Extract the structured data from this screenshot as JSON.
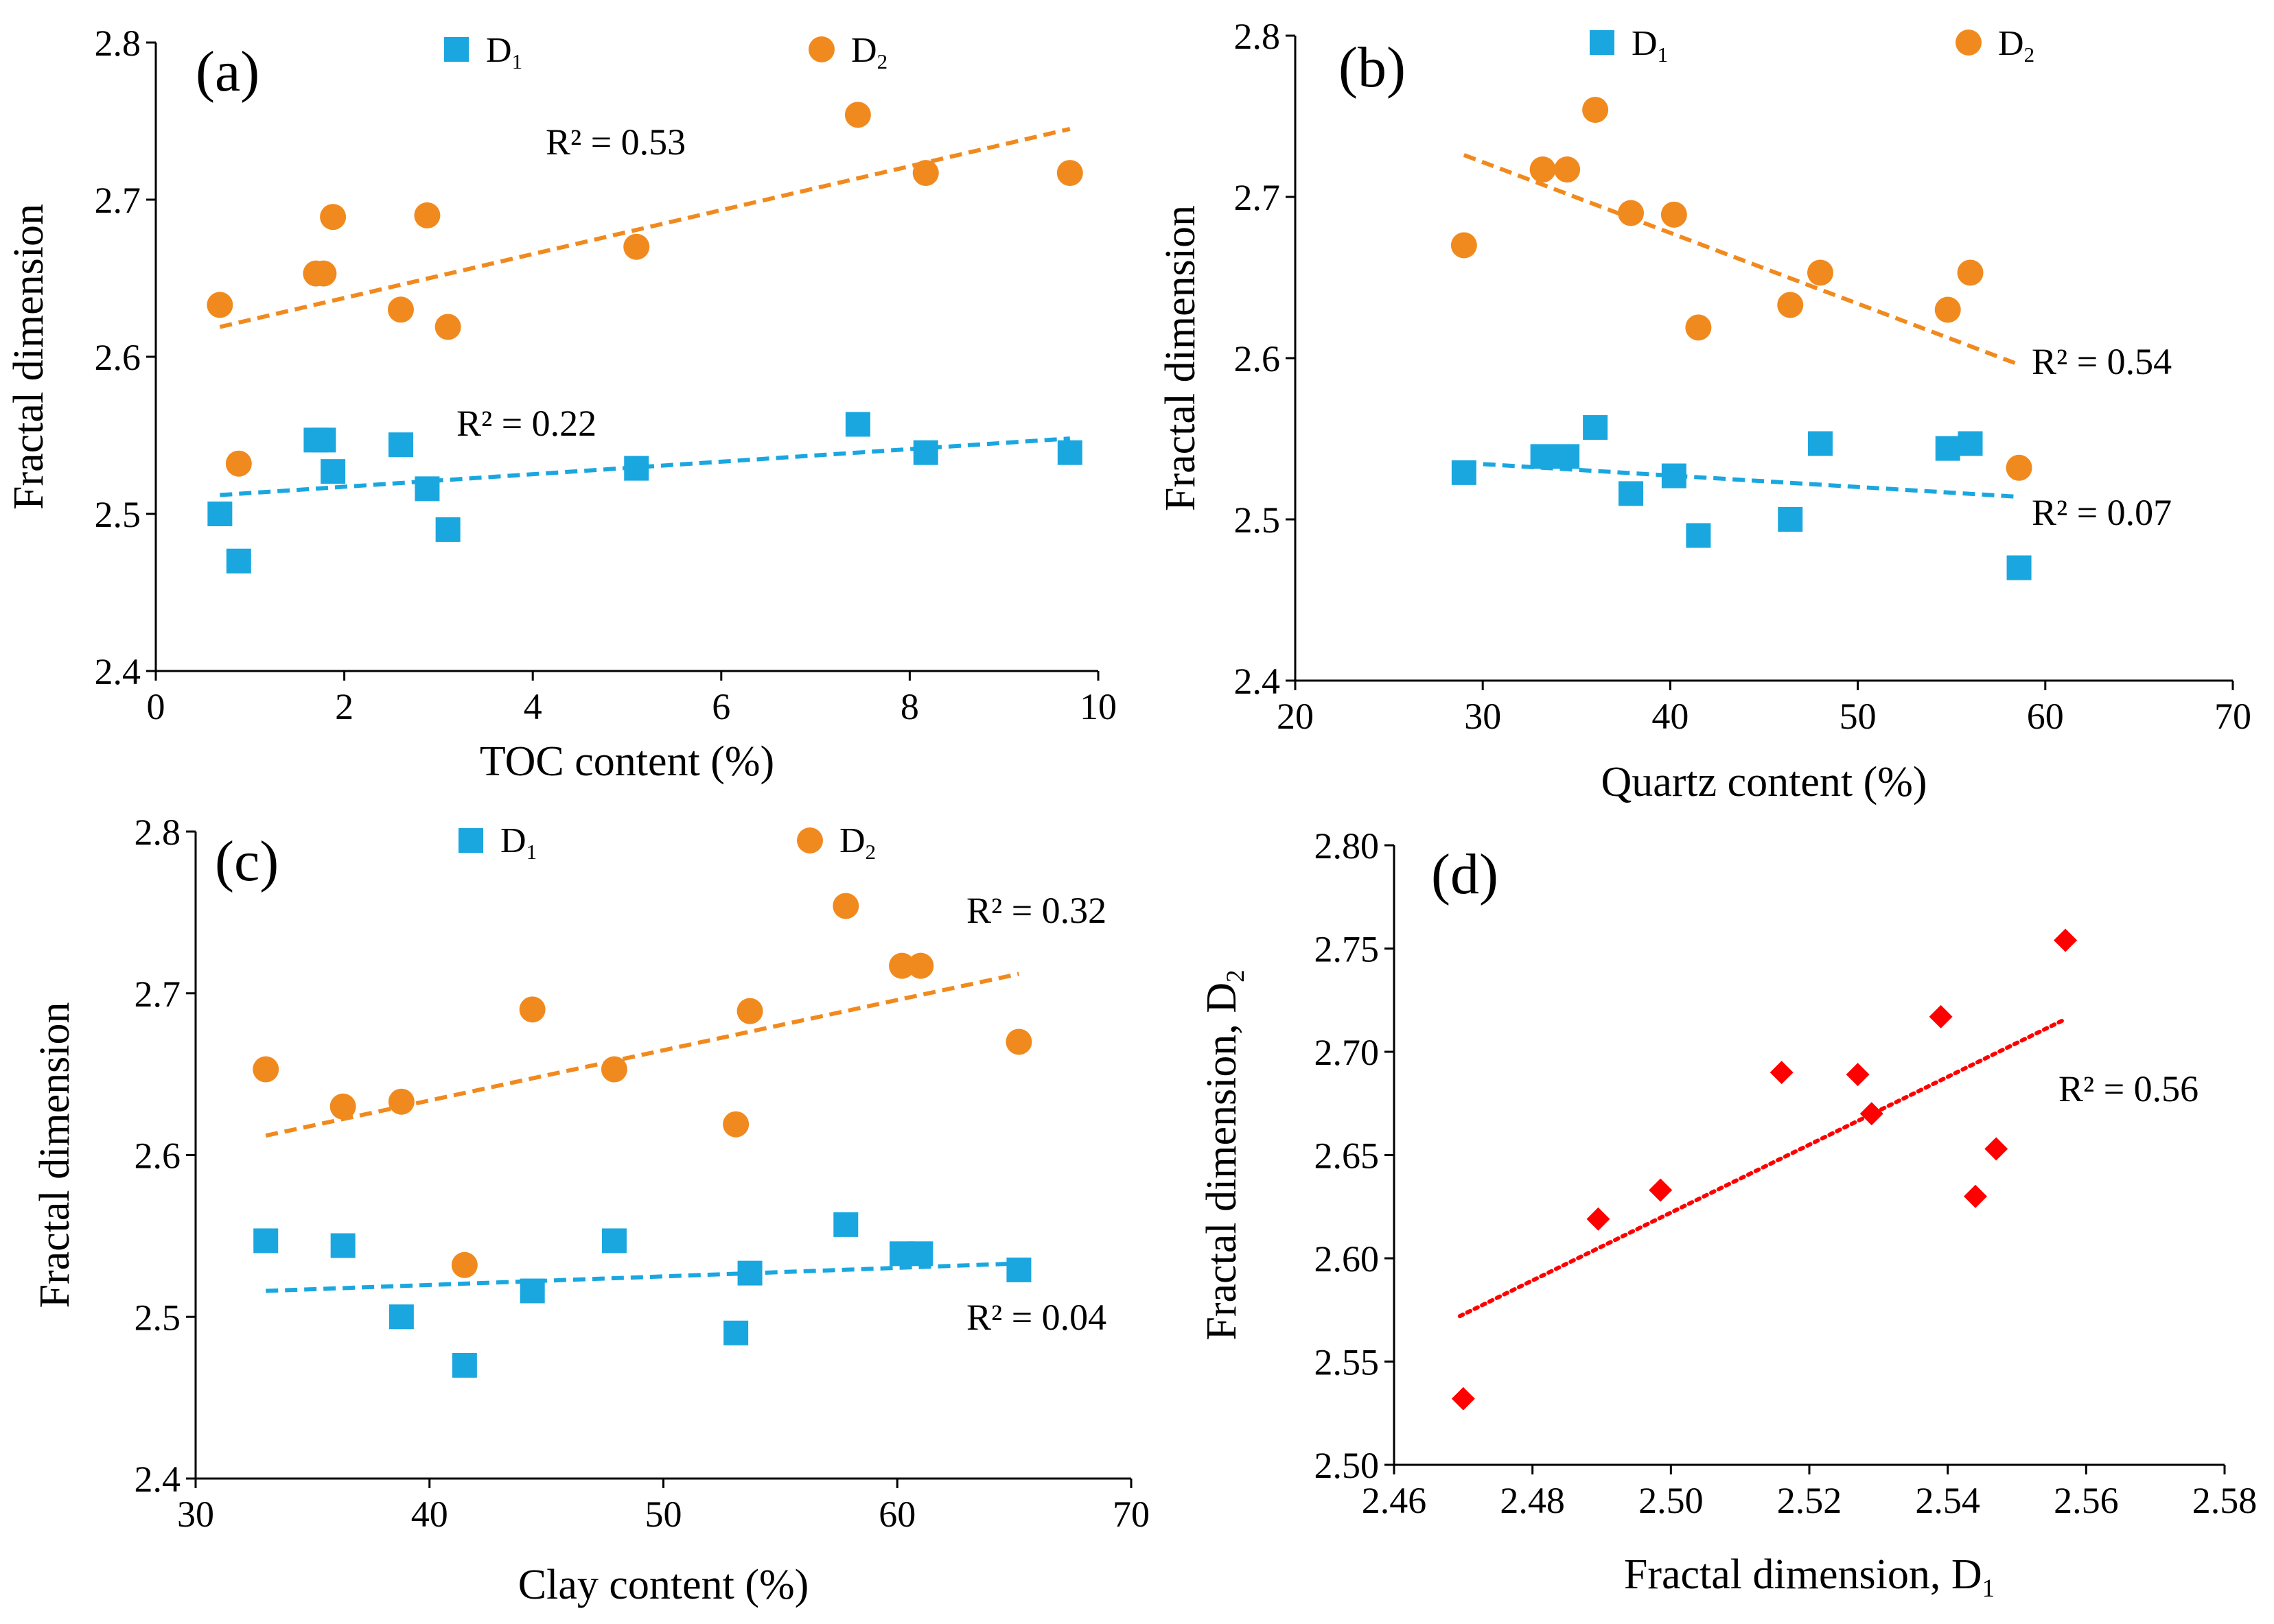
{
  "chart_data": [
    {
      "type": "scatter",
      "panel_label": "(a)",
      "xlabel": "TOC content (%)",
      "ylabel": "Fractal dimension",
      "xlim": [
        0,
        10
      ],
      "ylim": [
        2.4,
        2.8
      ],
      "xticks": [
        0,
        2,
        4,
        6,
        8,
        10
      ],
      "yticks": [
        2.4,
        2.5,
        2.6,
        2.7,
        2.8
      ],
      "xtick_labels": [
        "0",
        "2",
        "4",
        "6",
        "8",
        "10"
      ],
      "ytick_labels": [
        "2.4",
        "2.5",
        "2.6",
        "2.7",
        "2.8"
      ],
      "legend": [
        {
          "label": "D",
          "sub": "1",
          "marker": "square",
          "color": "#1aa7e0"
        },
        {
          "label": "D",
          "sub": "2",
          "marker": "circle",
          "color": "#f18a1e"
        }
      ],
      "series": [
        {
          "name": "D1",
          "marker": "square",
          "color": "#1aa7e0",
          "x": [
            0.68,
            0.88,
            1.7,
            1.78,
            1.88,
            2.6,
            2.88,
            3.1,
            5.1,
            7.45,
            8.17,
            9.7
          ],
          "y": [
            2.5,
            2.47,
            2.547,
            2.547,
            2.527,
            2.544,
            2.516,
            2.49,
            2.529,
            2.557,
            2.539,
            2.539
          ],
          "trend": {
            "x": [
              0.68,
              9.7
            ],
            "y": [
              2.512,
              2.548
            ]
          },
          "r2_label": "R² = 0.22"
        },
        {
          "name": "D2",
          "marker": "circle",
          "color": "#f18a1e",
          "x": [
            0.68,
            0.88,
            1.7,
            1.78,
            1.88,
            2.6,
            2.88,
            3.1,
            5.1,
            7.45,
            8.17,
            9.7
          ],
          "y": [
            2.633,
            2.532,
            2.653,
            2.653,
            2.689,
            2.63,
            2.69,
            2.619,
            2.67,
            2.754,
            2.717,
            2.717
          ],
          "trend": {
            "x": [
              0.68,
              9.7
            ],
            "y": [
              2.619,
              2.745
            ]
          },
          "r2_label": "R² = 0.53"
        }
      ]
    },
    {
      "type": "scatter",
      "panel_label": "(b)",
      "xlabel": "Quartz content (%)",
      "ylabel": "Fractal dimension",
      "xlim": [
        20,
        70
      ],
      "ylim": [
        2.4,
        2.8
      ],
      "xticks": [
        20,
        30,
        40,
        50,
        60,
        70
      ],
      "yticks": [
        2.4,
        2.5,
        2.6,
        2.7,
        2.8
      ],
      "xtick_labels": [
        "20",
        "30",
        "40",
        "50",
        "60",
        "70"
      ],
      "ytick_labels": [
        "2.4",
        "2.5",
        "2.6",
        "2.7",
        "2.8"
      ],
      "legend": [
        {
          "label": "D",
          "sub": "1",
          "marker": "square",
          "color": "#1aa7e0"
        },
        {
          "label": "D",
          "sub": "2",
          "marker": "circle",
          "color": "#f18a1e"
        }
      ],
      "series": [
        {
          "name": "D1",
          "marker": "square",
          "color": "#1aa7e0",
          "x": [
            29,
            33.2,
            34.5,
            36,
            37.9,
            40.2,
            41.5,
            46.4,
            48,
            54.8,
            56,
            58.6
          ],
          "y": [
            2.529,
            2.539,
            2.539,
            2.557,
            2.516,
            2.527,
            2.49,
            2.5,
            2.547,
            2.544,
            2.547,
            2.47
          ],
          "trend": {
            "x": [
              29,
              58.6
            ],
            "y": [
              2.535,
              2.514
            ]
          },
          "r2_label": "R² = 0.07"
        },
        {
          "name": "D2",
          "marker": "circle",
          "color": "#f18a1e",
          "x": [
            29,
            33.2,
            34.5,
            36,
            37.9,
            40.2,
            41.5,
            46.4,
            48,
            54.8,
            56,
            58.6
          ],
          "y": [
            2.67,
            2.717,
            2.717,
            2.754,
            2.69,
            2.689,
            2.619,
            2.633,
            2.653,
            2.63,
            2.653,
            2.532
          ],
          "trend": {
            "x": [
              29,
              58.6
            ],
            "y": [
              2.726,
              2.596
            ]
          },
          "r2_label": "R² = 0.54"
        }
      ]
    },
    {
      "type": "scatter",
      "panel_label": "(c)",
      "xlabel": "Clay content (%)",
      "ylabel": "Fractal dimension",
      "xlim": [
        30,
        70
      ],
      "ylim": [
        2.4,
        2.8
      ],
      "xticks": [
        30,
        40,
        50,
        60,
        70
      ],
      "yticks": [
        2.4,
        2.5,
        2.6,
        2.7,
        2.8
      ],
      "xtick_labels": [
        "30",
        "40",
        "50",
        "60",
        "70"
      ],
      "ytick_labels": [
        "2.4",
        "2.5",
        "2.6",
        "2.7",
        "2.8"
      ],
      "legend": [
        {
          "label": "D",
          "sub": "1",
          "marker": "square",
          "color": "#1aa7e0"
        },
        {
          "label": "D",
          "sub": "2",
          "marker": "circle",
          "color": "#f18a1e"
        }
      ],
      "series": [
        {
          "name": "D1",
          "marker": "square",
          "color": "#1aa7e0",
          "x": [
            33,
            36.3,
            38.8,
            41.5,
            44.4,
            47.9,
            53.1,
            53.7,
            57.8,
            60.2,
            61,
            65.2
          ],
          "y": [
            2.547,
            2.544,
            2.5,
            2.47,
            2.516,
            2.547,
            2.49,
            2.527,
            2.557,
            2.539,
            2.539,
            2.529
          ],
          "trend": {
            "x": [
              33,
              65.2
            ],
            "y": [
              2.516,
              2.533
            ]
          },
          "r2_label": "R² = 0.04"
        },
        {
          "name": "D2",
          "marker": "circle",
          "color": "#f18a1e",
          "x": [
            33,
            36.3,
            38.8,
            41.5,
            44.4,
            47.9,
            53.1,
            53.7,
            57.8,
            60.2,
            61,
            65.2
          ],
          "y": [
            2.653,
            2.63,
            2.633,
            2.532,
            2.69,
            2.653,
            2.619,
            2.689,
            2.754,
            2.717,
            2.717,
            2.67
          ],
          "trend": {
            "x": [
              33,
              65.2
            ],
            "y": [
              2.612,
              2.712
            ]
          },
          "r2_label": "R² = 0.32"
        }
      ]
    },
    {
      "type": "scatter",
      "panel_label": "(d)",
      "xlabel": "Fractal dimension, D",
      "xlabel_sub": "1",
      "ylabel": "Fractal dimension, D",
      "ylabel_sub": "2",
      "xlim": [
        2.46,
        2.58
      ],
      "ylim": [
        2.5,
        2.8
      ],
      "xticks": [
        2.46,
        2.48,
        2.5,
        2.52,
        2.54,
        2.56,
        2.58
      ],
      "yticks": [
        2.5,
        2.55,
        2.6,
        2.65,
        2.7,
        2.75,
        2.8
      ],
      "xtick_labels": [
        "2.46",
        "2.48",
        "2.50",
        "2.52",
        "2.54",
        "2.56",
        "2.58"
      ],
      "ytick_labels": [
        "2.50",
        "2.55",
        "2.60",
        "2.65",
        "2.70",
        "2.75",
        "2.80"
      ],
      "legend": [],
      "series": [
        {
          "name": "D1 vs D2",
          "marker": "diamond",
          "color": "#ff0000",
          "x": [
            2.47,
            2.4895,
            2.4985,
            2.516,
            2.527,
            2.529,
            2.539,
            2.544,
            2.547,
            2.557
          ],
          "y": [
            2.532,
            2.619,
            2.633,
            2.69,
            2.689,
            2.67,
            2.717,
            2.63,
            2.653,
            2.754
          ],
          "trend": {
            "x": [
              2.4695,
              2.5565
            ],
            "y": [
              2.572,
              2.715
            ]
          },
          "trend_style": "dotted",
          "r2_label": "R² = 0.56"
        }
      ]
    }
  ]
}
